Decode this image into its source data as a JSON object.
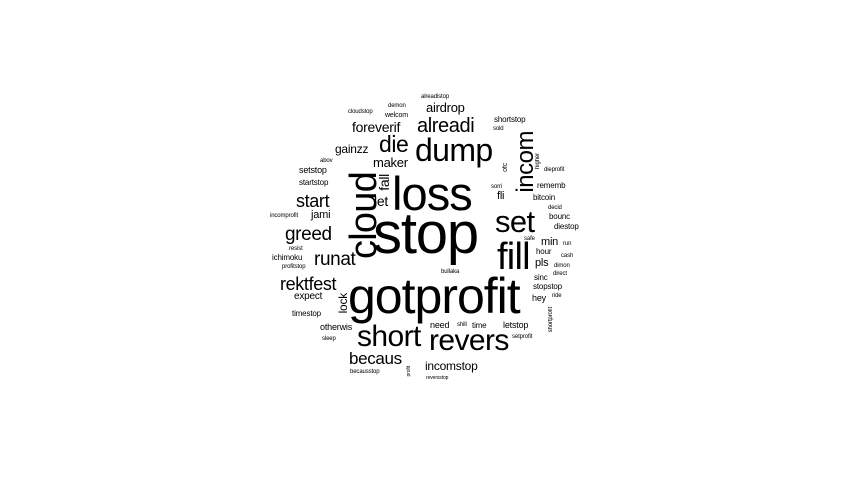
{
  "cloud": {
    "words": [
      "stop",
      "gotprofit",
      "loss",
      "cloud",
      "fill",
      "dump",
      "short",
      "revers",
      "set",
      "incom",
      "die",
      "alreadi",
      "rektfest",
      "runat",
      "greed",
      "start",
      "becaus",
      "foreverif",
      "airdrop",
      "fall",
      "let",
      "maker",
      "gainzz",
      "setstop",
      "startstop",
      "abov",
      "incomprofit",
      "jami",
      "resist",
      "ichimoku",
      "profitstop",
      "expect",
      "lock",
      "timestop",
      "otherwis",
      "sleep",
      "becausstop",
      "need",
      "shill",
      "time",
      "letstop",
      "setprofit",
      "shortprofit",
      "incomstop",
      "reversstop",
      "profit",
      "bullaka",
      "safe",
      "min",
      "pls",
      "sinc",
      "stopstop",
      "hey",
      "ride",
      "hour",
      "cash",
      "dimon",
      "direct",
      "run",
      "diestop",
      "bounc",
      "decid",
      "bitcoin",
      "fli",
      "rememb",
      "dieprofit",
      "higher",
      "sorri",
      "ofc",
      "shortstop",
      "sold",
      "cloudstop",
      "welcom",
      "demon",
      "alreadistop"
    ],
    "colors": {
      "text": "#000000",
      "background": "#ffffff"
    }
  }
}
